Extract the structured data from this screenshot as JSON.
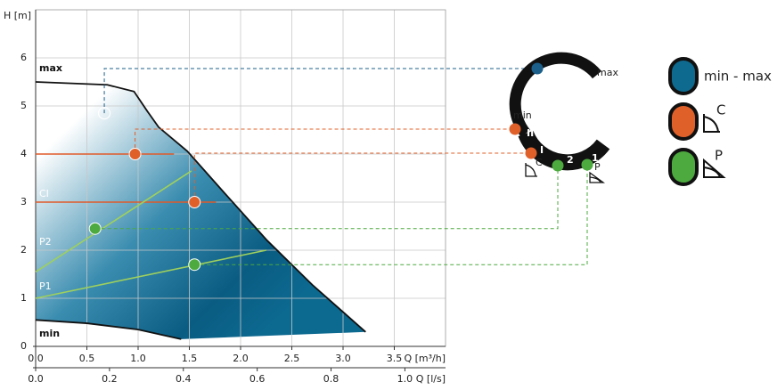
{
  "chart_data": {
    "type": "area",
    "ylabel": "H [m]",
    "xlabel": "Q [m³/h]",
    "x2label": "Q [l/s]",
    "xlim": [
      0,
      4.0
    ],
    "xticks": [
      {
        "value": 0,
        "label": "0.0"
      },
      0.5,
      {
        "value": 1,
        "label": "1.0"
      },
      1.5,
      {
        "value": 2,
        "label": "2.0"
      },
      2.5,
      {
        "value": 3,
        "label": "3.0"
      },
      3.5
    ],
    "x2lim": [
      0,
      1.11
    ],
    "x2ticks": [
      {
        "value": 0,
        "label": "0.0"
      },
      0.2,
      0.4,
      0.6,
      0.8,
      {
        "value": 1,
        "label": "1.0"
      }
    ],
    "ylim": [
      0,
      7
    ],
    "yticks": [
      0,
      1,
      2,
      3,
      4,
      5,
      6
    ],
    "grid": true,
    "series": [
      {
        "name": "max",
        "color": "#111111",
        "x": [
          0,
          0.7,
          0.96,
          1.09,
          1.2,
          1.48,
          1.83,
          2.26,
          2.7,
          3.22
        ],
        "values": [
          5.5,
          5.44,
          5.3,
          4.89,
          4.56,
          4.06,
          3.22,
          2.2,
          1.28,
          0.3
        ]
      },
      {
        "name": "CII",
        "color": "#e05a2a",
        "x": [
          0,
          1.35
        ],
        "values": [
          4,
          4
        ]
      },
      {
        "name": "CI",
        "color": "#e05a2a",
        "x": [
          0,
          1.76
        ],
        "values": [
          3,
          3
        ]
      },
      {
        "name": "P2",
        "color": "#9fd05c",
        "x": [
          0,
          1.52
        ],
        "values": [
          1.55,
          3.65
        ]
      },
      {
        "name": "P1",
        "color": "#9fd05c",
        "x": [
          0,
          2.25
        ],
        "values": [
          1.0,
          2.0
        ]
      },
      {
        "name": "min",
        "color": "#111111",
        "x": [
          0,
          0.5,
          1.0,
          1.42
        ],
        "values": [
          0.55,
          0.48,
          0.35,
          0.15
        ]
      }
    ],
    "points": [
      {
        "x": 0.67,
        "y": 4.85,
        "color": "#ffffff"
      },
      {
        "x": 0.97,
        "y": 4.0,
        "color": "#e0602a"
      },
      {
        "x": 1.55,
        "y": 3.0,
        "color": "#e0602a"
      },
      {
        "x": 0.58,
        "y": 2.45,
        "color": "#4caa3f"
      },
      {
        "x": 1.55,
        "y": 1.7,
        "color": "#4caa3f"
      }
    ]
  },
  "dial": {
    "max": "max",
    "min": "min",
    "II": "II",
    "I": "I",
    "two": "2",
    "one": "1",
    "c": "C",
    "p": "P"
  },
  "legend": {
    "minmax": "min - max",
    "c": "C",
    "p": "P"
  }
}
